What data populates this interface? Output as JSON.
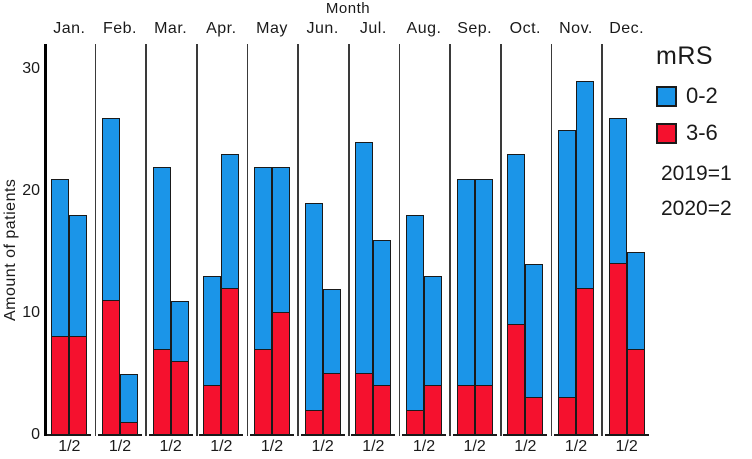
{
  "title": "Month",
  "y_axis": {
    "label": "Amount of patients",
    "tick_values": [
      0,
      10,
      20,
      30
    ]
  },
  "pair_label": "1/2",
  "legend": {
    "title": "mRS",
    "items": [
      {
        "label": "0-2",
        "color": "#1B95E8"
      },
      {
        "label": "3-6",
        "color": "#F5112E"
      }
    ],
    "year_notes": [
      "2019=1",
      "2020=2"
    ]
  },
  "chart_data": {
    "type": "bar",
    "stacked": true,
    "title": "Month",
    "xlabel": "Month",
    "ylabel": "Amount of patients",
    "ylim": [
      0,
      32
    ],
    "grid": false,
    "legend_position": "top-right",
    "categories": [
      "Jan.",
      "Feb.",
      "Mar.",
      "Apr.",
      "May",
      "Jun.",
      "Jul.",
      "Aug.",
      "Sep.",
      "Oct.",
      "Nov.",
      "Dec."
    ],
    "bar_order_note": "two bars per month: left bar 1 = 2019, right bar 2 = 2020; each stacked red mRS 3-6 (bottom) + blue mRS 0-2 (top)",
    "series": [
      {
        "name": "2019 mRS 3-6",
        "year": "2019",
        "mrs": "3-6",
        "color": "#F5112E",
        "values": [
          8,
          11,
          7,
          4,
          7,
          2,
          5,
          2,
          4,
          9,
          3,
          14
        ]
      },
      {
        "name": "2019 mRS 0-2",
        "year": "2019",
        "mrs": "0-2",
        "color": "#1B95E8",
        "values": [
          13,
          15,
          15,
          9,
          15,
          17,
          19,
          16,
          17,
          14,
          22,
          12
        ]
      },
      {
        "name": "2020 mRS 3-6",
        "year": "2020",
        "mrs": "3-6",
        "color": "#F5112E",
        "values": [
          8,
          1,
          6,
          12,
          10,
          5,
          4,
          4,
          4,
          3,
          12,
          7
        ]
      },
      {
        "name": "2020 mRS 0-2",
        "year": "2020",
        "mrs": "0-2",
        "color": "#1B95E8",
        "values": [
          10,
          4,
          5,
          11,
          12,
          7,
          12,
          9,
          17,
          11,
          17,
          8
        ]
      }
    ],
    "totals_2019": [
      21,
      26,
      22,
      13,
      22,
      19,
      24,
      18,
      21,
      23,
      25,
      26
    ],
    "totals_2020": [
      18,
      5,
      11,
      23,
      22,
      12,
      16,
      13,
      21,
      14,
      29,
      15
    ]
  }
}
